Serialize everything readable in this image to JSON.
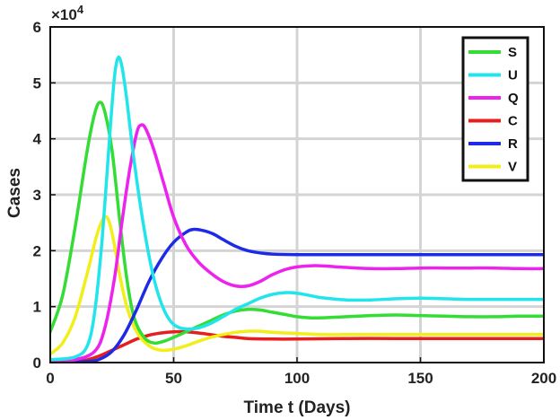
{
  "chart_data": {
    "type": "line",
    "xlabel": "Time t (Days)",
    "ylabel": "Cases",
    "exponent_label": "×10",
    "exponent_power": "4",
    "xlim": [
      0,
      200
    ],
    "ylim": [
      0,
      6
    ],
    "xticks": [
      0,
      50,
      100,
      150,
      200
    ],
    "yticks": [
      0,
      1,
      2,
      3,
      4,
      5,
      6
    ],
    "grid": true,
    "legend_position": "top-right",
    "series": [
      {
        "name": "S",
        "color": "#33dd33",
        "points": [
          [
            0,
            0.55
          ],
          [
            5,
            1.2
          ],
          [
            10,
            2.4
          ],
          [
            15,
            3.8
          ],
          [
            18,
            4.45
          ],
          [
            20,
            4.65
          ],
          [
            22,
            4.5
          ],
          [
            25,
            3.8
          ],
          [
            28,
            2.6
          ],
          [
            31,
            1.5
          ],
          [
            34,
            0.8
          ],
          [
            38,
            0.45
          ],
          [
            42,
            0.35
          ],
          [
            46,
            0.38
          ],
          [
            50,
            0.45
          ],
          [
            55,
            0.55
          ],
          [
            60,
            0.65
          ],
          [
            65,
            0.75
          ],
          [
            70,
            0.85
          ],
          [
            75,
            0.92
          ],
          [
            80,
            0.95
          ],
          [
            85,
            0.94
          ],
          [
            90,
            0.9
          ],
          [
            95,
            0.86
          ],
          [
            100,
            0.82
          ],
          [
            105,
            0.8
          ],
          [
            110,
            0.8
          ],
          [
            120,
            0.82
          ],
          [
            130,
            0.84
          ],
          [
            140,
            0.85
          ],
          [
            150,
            0.84
          ],
          [
            160,
            0.83
          ],
          [
            170,
            0.82
          ],
          [
            180,
            0.82
          ],
          [
            190,
            0.83
          ],
          [
            200,
            0.83
          ]
        ]
      },
      {
        "name": "U",
        "color": "#22e5ec",
        "points": [
          [
            0,
            0.05
          ],
          [
            10,
            0.1
          ],
          [
            15,
            0.3
          ],
          [
            18,
            0.9
          ],
          [
            21,
            2.2
          ],
          [
            24,
            4.0
          ],
          [
            26,
            5.1
          ],
          [
            27.5,
            5.45
          ],
          [
            29,
            5.3
          ],
          [
            31,
            4.7
          ],
          [
            34,
            3.6
          ],
          [
            38,
            2.4
          ],
          [
            42,
            1.5
          ],
          [
            46,
            0.95
          ],
          [
            50,
            0.68
          ],
          [
            55,
            0.6
          ],
          [
            60,
            0.62
          ],
          [
            65,
            0.7
          ],
          [
            70,
            0.82
          ],
          [
            75,
            0.95
          ],
          [
            80,
            1.05
          ],
          [
            85,
            1.15
          ],
          [
            90,
            1.22
          ],
          [
            95,
            1.25
          ],
          [
            100,
            1.24
          ],
          [
            105,
            1.2
          ],
          [
            110,
            1.16
          ],
          [
            120,
            1.12
          ],
          [
            130,
            1.12
          ],
          [
            140,
            1.14
          ],
          [
            150,
            1.15
          ],
          [
            160,
            1.14
          ],
          [
            170,
            1.13
          ],
          [
            180,
            1.13
          ],
          [
            190,
            1.13
          ],
          [
            200,
            1.13
          ]
        ]
      },
      {
        "name": "Q",
        "color": "#ee22ee",
        "points": [
          [
            0,
            0.02
          ],
          [
            10,
            0.05
          ],
          [
            18,
            0.2
          ],
          [
            22,
            0.6
          ],
          [
            26,
            1.5
          ],
          [
            29,
            2.5
          ],
          [
            32,
            3.4
          ],
          [
            35,
            4.1
          ],
          [
            37,
            4.25
          ],
          [
            39,
            4.15
          ],
          [
            42,
            3.8
          ],
          [
            46,
            3.2
          ],
          [
            50,
            2.6
          ],
          [
            55,
            2.1
          ],
          [
            60,
            1.8
          ],
          [
            65,
            1.6
          ],
          [
            70,
            1.45
          ],
          [
            75,
            1.37
          ],
          [
            80,
            1.37
          ],
          [
            85,
            1.45
          ],
          [
            90,
            1.57
          ],
          [
            95,
            1.66
          ],
          [
            100,
            1.71
          ],
          [
            105,
            1.73
          ],
          [
            110,
            1.73
          ],
          [
            120,
            1.7
          ],
          [
            130,
            1.68
          ],
          [
            140,
            1.68
          ],
          [
            150,
            1.69
          ],
          [
            160,
            1.69
          ],
          [
            170,
            1.69
          ],
          [
            180,
            1.69
          ],
          [
            190,
            1.68
          ],
          [
            200,
            1.68
          ]
        ]
      },
      {
        "name": "C",
        "color": "#e61e1e",
        "points": [
          [
            0,
            0.0
          ],
          [
            10,
            0.02
          ],
          [
            15,
            0.05
          ],
          [
            20,
            0.12
          ],
          [
            25,
            0.22
          ],
          [
            30,
            0.32
          ],
          [
            35,
            0.42
          ],
          [
            40,
            0.49
          ],
          [
            45,
            0.53
          ],
          [
            50,
            0.55
          ],
          [
            55,
            0.55
          ],
          [
            60,
            0.53
          ],
          [
            65,
            0.5
          ],
          [
            70,
            0.47
          ],
          [
            75,
            0.45
          ],
          [
            80,
            0.43
          ],
          [
            90,
            0.42
          ],
          [
            100,
            0.42
          ],
          [
            120,
            0.43
          ],
          [
            140,
            0.43
          ],
          [
            160,
            0.43
          ],
          [
            180,
            0.43
          ],
          [
            200,
            0.43
          ]
        ]
      },
      {
        "name": "R",
        "color": "#1e2be6",
        "points": [
          [
            0,
            0.0
          ],
          [
            15,
            0.02
          ],
          [
            20,
            0.06
          ],
          [
            25,
            0.2
          ],
          [
            30,
            0.5
          ],
          [
            35,
            0.95
          ],
          [
            40,
            1.45
          ],
          [
            45,
            1.85
          ],
          [
            50,
            2.15
          ],
          [
            55,
            2.33
          ],
          [
            58,
            2.38
          ],
          [
            62,
            2.36
          ],
          [
            66,
            2.3
          ],
          [
            70,
            2.2
          ],
          [
            75,
            2.08
          ],
          [
            80,
            2.0
          ],
          [
            85,
            1.96
          ],
          [
            90,
            1.94
          ],
          [
            100,
            1.93
          ],
          [
            120,
            1.93
          ],
          [
            140,
            1.93
          ],
          [
            160,
            1.93
          ],
          [
            180,
            1.93
          ],
          [
            200,
            1.93
          ]
        ]
      },
      {
        "name": "V",
        "color": "#f2ee1a",
        "points": [
          [
            0,
            0.15
          ],
          [
            5,
            0.35
          ],
          [
            10,
            0.8
          ],
          [
            15,
            1.6
          ],
          [
            19,
            2.3
          ],
          [
            22,
            2.6
          ],
          [
            24,
            2.5
          ],
          [
            26,
            2.1
          ],
          [
            28,
            1.6
          ],
          [
            31,
            1.0
          ],
          [
            35,
            0.55
          ],
          [
            40,
            0.3
          ],
          [
            45,
            0.22
          ],
          [
            50,
            0.24
          ],
          [
            55,
            0.3
          ],
          [
            60,
            0.38
          ],
          [
            65,
            0.45
          ],
          [
            70,
            0.5
          ],
          [
            75,
            0.54
          ],
          [
            80,
            0.56
          ],
          [
            85,
            0.56
          ],
          [
            90,
            0.54
          ],
          [
            100,
            0.52
          ],
          [
            110,
            0.5
          ],
          [
            120,
            0.5
          ],
          [
            140,
            0.5
          ],
          [
            160,
            0.5
          ],
          [
            180,
            0.5
          ],
          [
            200,
            0.5
          ]
        ]
      }
    ]
  }
}
